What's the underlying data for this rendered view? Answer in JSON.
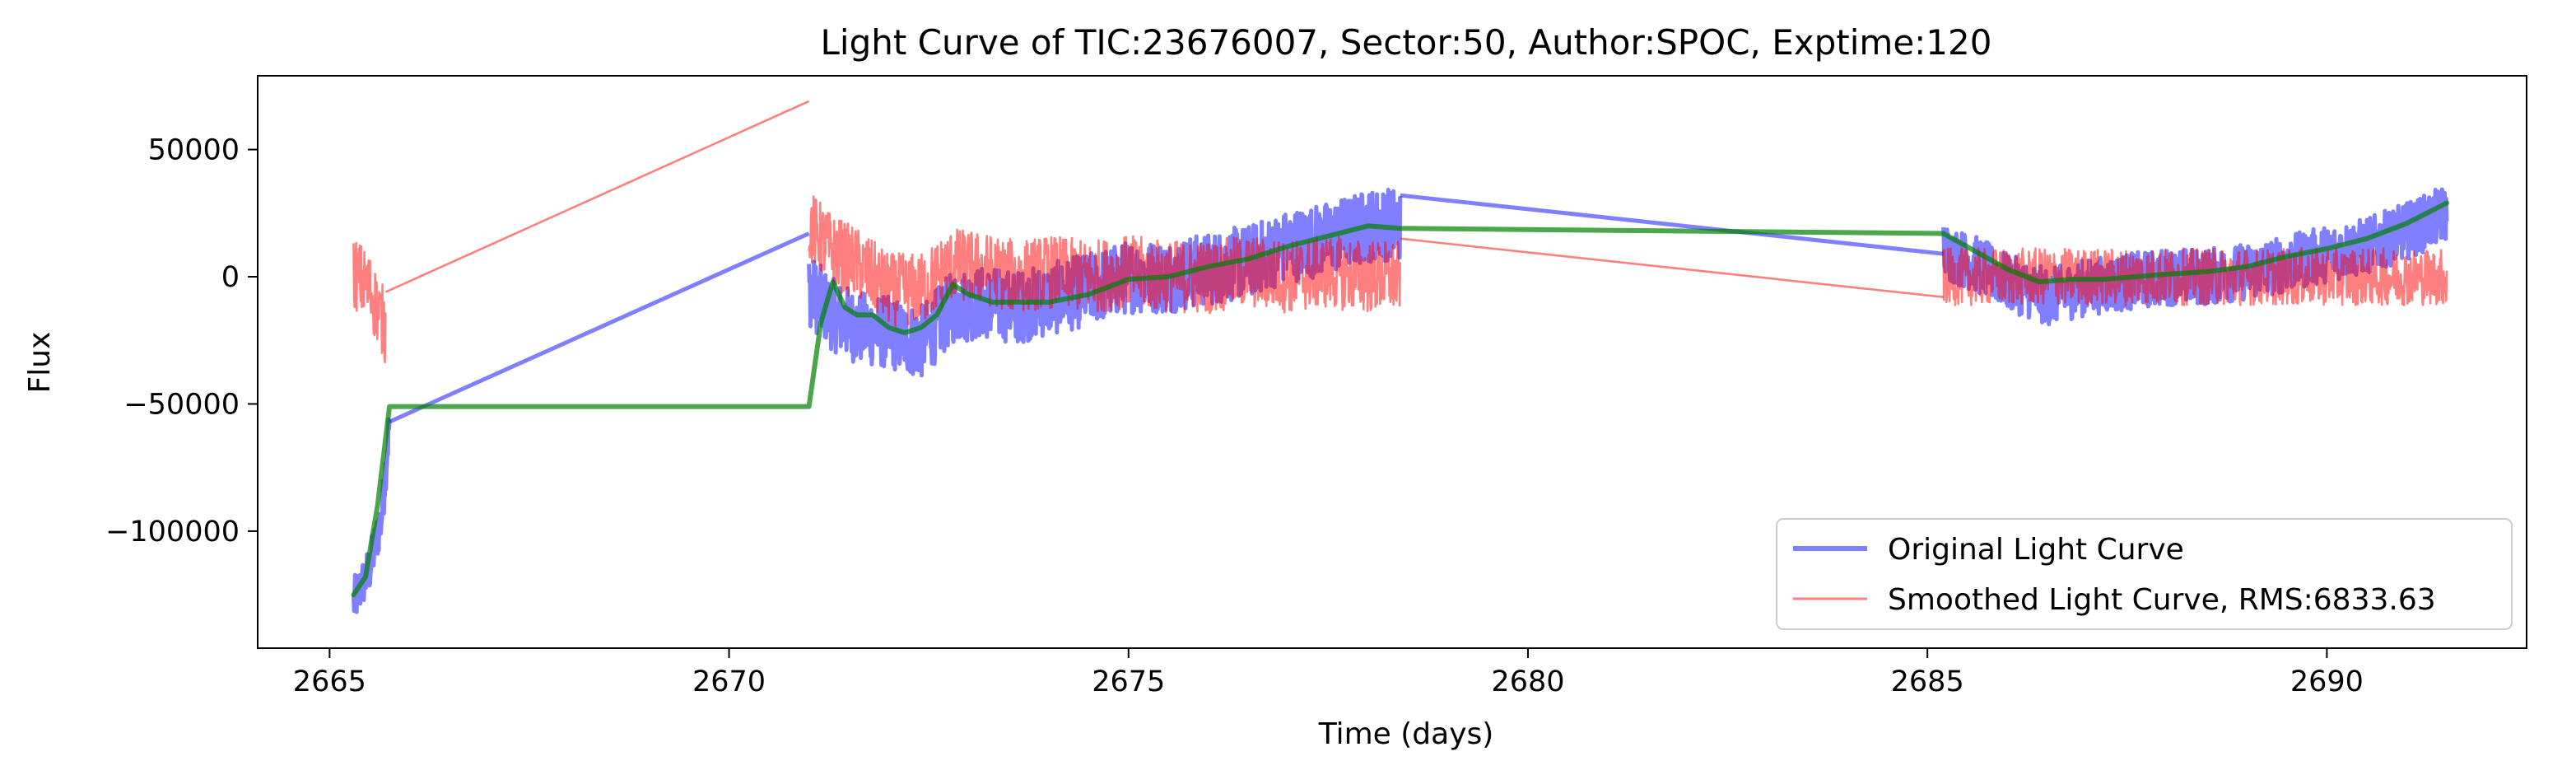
{
  "chart_data": {
    "type": "line",
    "title": "Light Curve of TIC:23676007, Sector:50, Author:SPOC, Exptime:120",
    "xlabel": "Time (days)",
    "ylabel": "Flux",
    "xlim": [
      2664.1,
      2692.5
    ],
    "ylim": [
      -146000,
      79000
    ],
    "xticks": [
      2665,
      2670,
      2675,
      2680,
      2685,
      2690
    ],
    "xtick_labels": [
      "2665",
      "2670",
      "2675",
      "2680",
      "2685",
      "2690"
    ],
    "yticks": [
      50000,
      0,
      -50000,
      -100000
    ],
    "ytick_labels": [
      "50000",
      "0",
      "−50000",
      "−100000"
    ],
    "grid": false,
    "legend": {
      "placement": "lower-right",
      "entries": [
        "Original Light Curve",
        "Smoothed Light Curve, RMS:6833.63"
      ]
    },
    "series": [
      {
        "name": "Original Light Curve",
        "color": "#0000ff",
        "opacity": 0.5,
        "segments": [
          {
            "x": [
              2665.3,
              2665.5,
              2665.65,
              2665.75
            ],
            "y": [
              -128000,
              -115000,
              -95000,
              -57000
            ],
            "noise": 6000
          },
          {
            "x": [
              2665.75,
              2671.0
            ],
            "y": [
              -57000,
              17000
            ],
            "noise": 0
          },
          {
            "x": [
              2671.0,
              2671.3,
              2671.6,
              2672.0,
              2672.4,
              2672.8,
              2673.2,
              2673.6,
              2674.0,
              2674.5,
              2675.0,
              2675.5,
              2676.0,
              2676.5,
              2677.0,
              2677.5,
              2678.0,
              2678.4
            ],
            "y": [
              -5000,
              -15000,
              -20000,
              -22000,
              -26000,
              -12000,
              -10000,
              -12000,
              -9000,
              -5000,
              0,
              0,
              3000,
              6000,
              12000,
              15000,
              20000,
              21000
            ],
            "noise": 9000
          },
          {
            "x": [
              2678.4,
              2685.2
            ],
            "y": [
              32000,
              9000
            ],
            "noise": 0
          },
          {
            "x": [
              2685.2,
              2685.6,
              2686.0,
              2686.5,
              2687.0,
              2687.5,
              2688.0,
              2688.5,
              2689.0,
              2689.5,
              2690.0,
              2690.5,
              2691.0,
              2691.5
            ],
            "y": [
              10000,
              5000,
              -2000,
              -8000,
              -4000,
              -2000,
              0,
              0,
              2000,
              5000,
              9000,
              12000,
              18000,
              25000
            ],
            "noise": 7000
          }
        ]
      },
      {
        "name": "Smoothed Light Curve, RMS:6833.63",
        "color": "#ff0000",
        "opacity": 0.5,
        "segments": [
          {
            "x": [
              2665.3,
              2665.5,
              2665.7
            ],
            "y": [
              2000,
              -5000,
              -20000
            ],
            "noise": 9000
          },
          {
            "x": [
              2665.7,
              2671.0
            ],
            "y": [
              -6000,
              69000
            ],
            "noise": 0
          },
          {
            "x": [
              2671.0,
              2671.3,
              2671.6,
              2672.0,
              2672.4,
              2672.8,
              2673.2,
              2673.6,
              2674.0,
              2674.5,
              2675.0,
              2675.5,
              2676.0,
              2676.5,
              2677.0,
              2677.5,
              2678.0,
              2678.4
            ],
            "y": [
              20000,
              10000,
              5000,
              -5000,
              -5000,
              5000,
              3000,
              0,
              2000,
              0,
              2000,
              0,
              0,
              2000,
              0,
              2000,
              0,
              0
            ],
            "noise": 9000
          },
          {
            "x": [
              2678.4,
              2685.2
            ],
            "y": [
              15000,
              -8000
            ],
            "noise": 0
          },
          {
            "x": [
              2685.2,
              2686.0,
              2687.0,
              2688.0,
              2689.0,
              2690.0,
              2691.0,
              2691.5
            ],
            "y": [
              0,
              0,
              0,
              0,
              0,
              0,
              0,
              0
            ],
            "noise": 7000
          }
        ]
      },
      {
        "color": "#008000",
        "opacity": 0.7,
        "points": {
          "x": [
            2665.3,
            2665.45,
            2665.6,
            2665.75,
            2671.0,
            2671.15,
            2671.3,
            2671.45,
            2671.6,
            2671.8,
            2672.0,
            2672.2,
            2672.4,
            2672.6,
            2672.8,
            2673.0,
            2673.3,
            2673.6,
            2674.0,
            2674.5,
            2675.0,
            2675.5,
            2676.0,
            2676.5,
            2677.0,
            2677.5,
            2678.0,
            2678.4,
            2685.2,
            2685.6,
            2686.0,
            2686.4,
            2686.8,
            2687.2,
            2687.6,
            2688.0,
            2688.5,
            2689.0,
            2689.5,
            2690.0,
            2690.5,
            2691.0,
            2691.5
          ],
          "y": [
            -125000,
            -118000,
            -90000,
            -51000,
            -51000,
            -18000,
            -2000,
            -12000,
            -15000,
            -15000,
            -20000,
            -22000,
            -20000,
            -15000,
            -3000,
            -7000,
            -10000,
            -10000,
            -10000,
            -7000,
            -1000,
            0,
            4000,
            7000,
            12000,
            16000,
            20000,
            19000,
            17000,
            10000,
            3000,
            -2000,
            -1000,
            -1000,
            0,
            1000,
            2000,
            4000,
            8000,
            11000,
            15000,
            21000,
            29000
          ]
        }
      }
    ]
  }
}
